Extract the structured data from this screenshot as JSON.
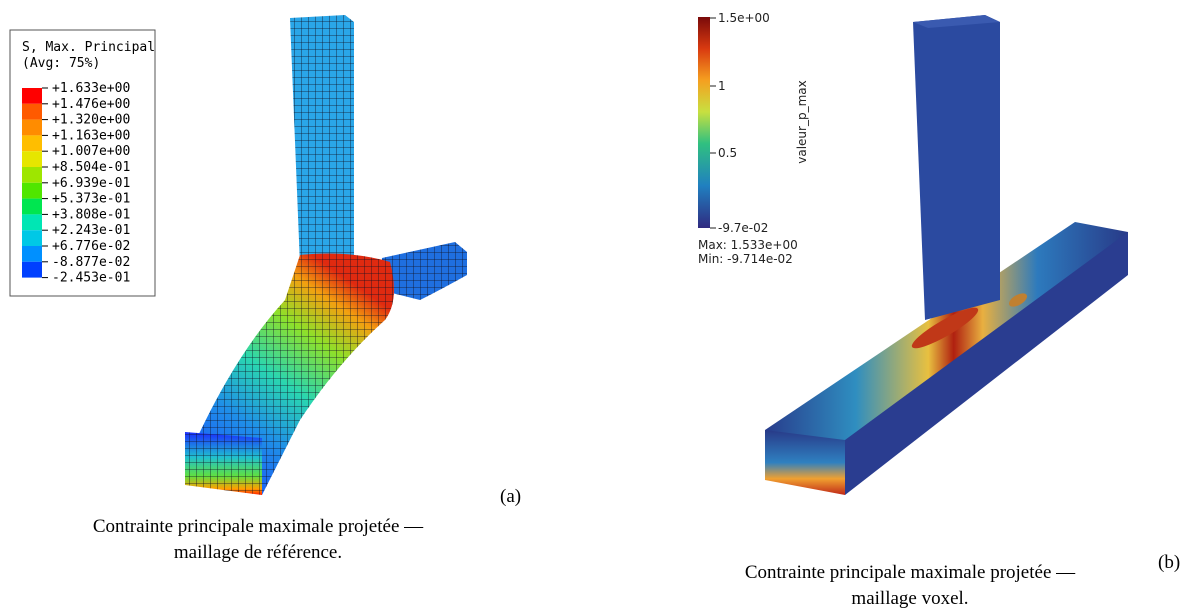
{
  "panel_a": {
    "legend": {
      "title": "S, Max. Principal",
      "subtitle": "(Avg: 75%)",
      "labels": [
        "+1.633e+00",
        "+1.476e+00",
        "+1.320e+00",
        "+1.163e+00",
        "+1.007e+00",
        "+8.504e-01",
        "+6.939e-01",
        "+5.373e-01",
        "+3.808e-01",
        "+2.243e-01",
        "+6.776e-02",
        "-8.877e-02",
        "-2.453e-01"
      ]
    },
    "tag": "(a)",
    "caption": [
      "Contrainte principale maximale projetée —",
      "maillage de référence."
    ]
  },
  "panel_b": {
    "colorbar": {
      "ticks": [
        "1.5e+00",
        "1",
        "0.5",
        "-9.7e-02"
      ],
      "title": "valeur_p_max",
      "max": "Max: 1.533e+00",
      "min": "Min: -9.714e-02"
    },
    "tag": "(b)",
    "caption": [
      "Contrainte principale maximale projetée —",
      "maillage voxel."
    ]
  }
}
